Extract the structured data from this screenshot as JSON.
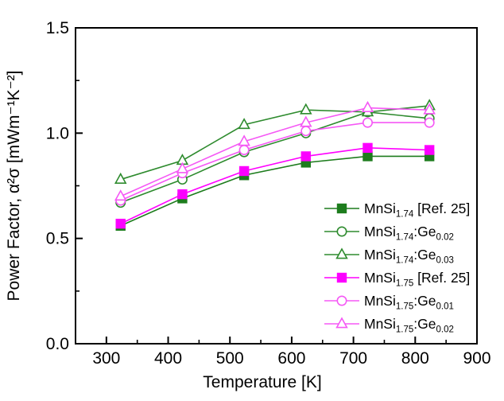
{
  "chart_data": {
    "type": "line",
    "title": "",
    "xlabel": "Temperature [K]",
    "ylabel": "Power Factor, α²σ [mWm⁻¹K⁻²]",
    "xlim": [
      250,
      900
    ],
    "ylim": [
      0,
      1.5
    ],
    "x_major_ticks": [
      300,
      400,
      500,
      600,
      700,
      800,
      900
    ],
    "x_tick_labels": [
      "300",
      "400",
      "500",
      "600",
      "700",
      "800",
      "900"
    ],
    "x_minor_step": 50,
    "y_major_ticks": [
      0.0,
      0.5,
      1.0,
      1.5
    ],
    "y_tick_labels": [
      "0.0",
      "0.5",
      "1.0",
      "1.5"
    ],
    "y_minor_step": 0.25,
    "grid": false,
    "legend_position": "lower-right-inside",
    "x": [
      323,
      423,
      523,
      623,
      723,
      823
    ],
    "series": [
      {
        "name": "MnSi1.74 [Ref. 25]",
        "label_parts": [
          {
            "t": "MnSi"
          },
          {
            "t": "1.74",
            "sub": true
          },
          {
            "t": " [Ref. 25]"
          }
        ],
        "marker": "square-filled",
        "color": "#1d7c1d",
        "fill": "#1d7c1d",
        "values": [
          0.56,
          0.69,
          0.8,
          0.86,
          0.89,
          0.89
        ]
      },
      {
        "name": "MnSi1.74:Ge0.02",
        "label_parts": [
          {
            "t": "MnSi"
          },
          {
            "t": "1.74",
            "sub": true
          },
          {
            "t": ":Ge"
          },
          {
            "t": "0.02",
            "sub": true
          }
        ],
        "marker": "circle-open",
        "color": "#2e8b2e",
        "fill": "#ffffff",
        "values": [
          0.67,
          0.78,
          0.91,
          1.0,
          1.1,
          1.07
        ]
      },
      {
        "name": "MnSi1.74:Ge0.03",
        "label_parts": [
          {
            "t": "MnSi"
          },
          {
            "t": "1.74",
            "sub": true
          },
          {
            "t": ":Ge"
          },
          {
            "t": "0.03",
            "sub": true
          }
        ],
        "marker": "triangle-open",
        "color": "#2e8b2e",
        "fill": "#ffffff",
        "values": [
          0.78,
          0.87,
          1.04,
          1.11,
          1.1,
          1.13
        ]
      },
      {
        "name": "MnSi1.75 [Ref. 25]",
        "label_parts": [
          {
            "t": "MnSi"
          },
          {
            "t": "1.75",
            "sub": true
          },
          {
            "t": " [Ref. 25]"
          }
        ],
        "marker": "square-filled",
        "color": "#ff00ff",
        "fill": "#f b00ff",
        "values": [
          0.57,
          0.71,
          0.82,
          0.89,
          0.93,
          0.92
        ]
      },
      {
        "name": "MnSi1.75:Ge0.01",
        "label_parts": [
          {
            "t": "MnSi"
          },
          {
            "t": "1.75",
            "sub": true
          },
          {
            "t": ":Ge"
          },
          {
            "t": "0.01",
            "sub": true
          }
        ],
        "marker": "circle-open",
        "color": "#f558f5",
        "fill": "#ffffff",
        "values": [
          0.68,
          0.81,
          0.92,
          1.01,
          1.05,
          1.05
        ]
      },
      {
        "name": "MnSi1.75:Ge0.02",
        "label_parts": [
          {
            "t": "MnSi"
          },
          {
            "t": "1.75",
            "sub": true
          },
          {
            "t": ":Ge"
          },
          {
            "t": "0.02",
            "sub": true
          }
        ],
        "marker": "triangle-open",
        "color": "#f558f5",
        "fill": "#ffffff",
        "values": [
          0.7,
          0.83,
          0.96,
          1.05,
          1.12,
          1.11
        ]
      }
    ]
  }
}
